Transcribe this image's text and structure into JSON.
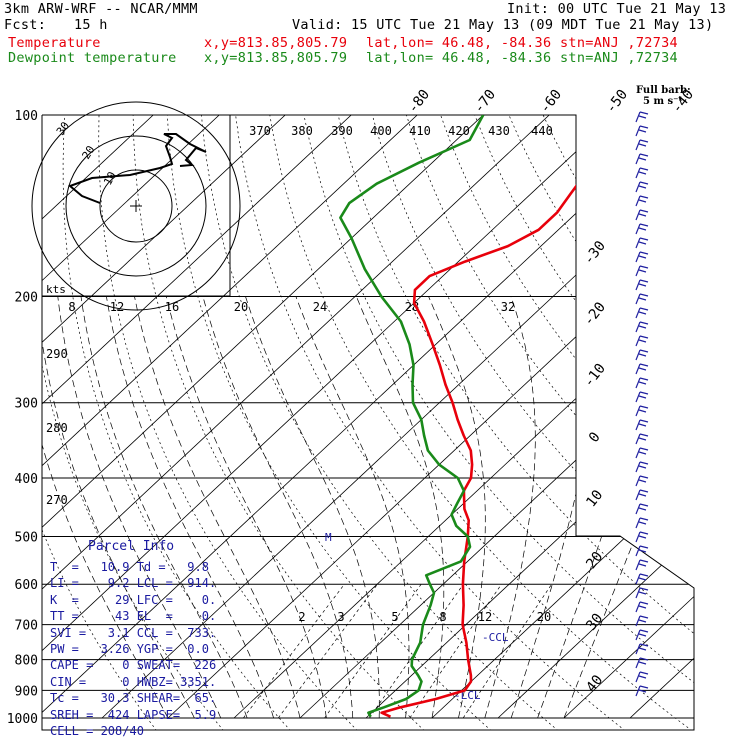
{
  "header": {
    "model": "3km ARW-WRF -- NCAR/MMM",
    "init": "Init: 00 UTC Tue 21 May 13",
    "fcst_label": "Fcst:",
    "fcst_value": "15 h",
    "valid": "Valid: 15 UTC Tue 21 May 13 (09 MDT Tue 21 May 13)",
    "temp_label": "Temperature",
    "dew_label": "Dewpoint temperature",
    "xy": "x,y=813.85,805.79",
    "latlon": "lat,lon= 46.48, -84.36",
    "stn": "stn=ANJ ,72734",
    "full_barb_1": "Full barb:",
    "full_barb_2": "5 m s⁻¹"
  },
  "hodograph": {
    "kts_label": "kts",
    "ring_labels": [
      "10",
      "20",
      "30"
    ]
  },
  "parcel": {
    "title": "Parcel Info",
    "rows": [
      "T  =   10.9 Td =   9.8",
      "LI =    9.2 LCL =  914.",
      "K  =     29 LFC =    0.",
      "TT =     43 EL  =    0.",
      "SVI =   3.1 CCL =  733.",
      "PW =   3.26 YGP =  0.0",
      "CAPE =    0 SWEAT=  226",
      "CIN =     0 HWBZ= 3351.",
      "Tc =   30.3 SHEAR=  65.",
      "SREH =  424 LAPSE=  5.9",
      "CELL = 208/40"
    ]
  },
  "colors": {
    "temperature": "#e8000b",
    "dewpoint": "#1a8a1a",
    "axes": "#000000",
    "dashed": "#000000",
    "parcel_text": "#1a1aa0",
    "barbs": "#2020a0"
  },
  "chart_data": {
    "type": "line",
    "title": "",
    "xlabel": "",
    "ylabel": "",
    "y_scale": "log-pressure",
    "pressure_ticks": [
      100,
      200,
      300,
      400,
      500,
      600,
      700,
      800,
      900,
      1000
    ],
    "isotherm_labels": [
      "-80",
      "-70",
      "-60",
      "-50",
      "-40",
      "-30",
      "-20",
      "-10",
      "0",
      "10",
      "20",
      "30",
      "40"
    ],
    "theta_labels_top": [
      "370",
      "380",
      "390",
      "400",
      "410",
      "420",
      "430",
      "440"
    ],
    "theta_labels_left": [
      "290",
      "280",
      "270"
    ],
    "mixing_ratio_labels_top": [
      "8",
      "12",
      "16",
      "20",
      "24",
      "28",
      "32"
    ],
    "mixing_ratio_labels_low": [
      "2",
      "3",
      "5",
      "8",
      "12",
      "20"
    ],
    "annotations": [
      "CCL",
      "LCL",
      "M"
    ],
    "series": [
      {
        "name": "Temperature",
        "points": [
          [
            995,
            13.5
          ],
          [
            980,
            11.5
          ],
          [
            960,
            13.5
          ],
          [
            930,
            17.5
          ],
          [
            900,
            20.5
          ],
          [
            870,
            20
          ],
          [
            850,
            19
          ],
          [
            800,
            16
          ],
          [
            750,
            13
          ],
          [
            700,
            9.5
          ],
          [
            650,
            6.5
          ],
          [
            600,
            3
          ],
          [
            550,
            -0.5
          ],
          [
            500,
            -4
          ],
          [
            470,
            -6.5
          ],
          [
            450,
            -9
          ],
          [
            420,
            -12
          ],
          [
            400,
            -13
          ],
          [
            380,
            -15
          ],
          [
            360,
            -17.5
          ],
          [
            340,
            -21
          ],
          [
            320,
            -24.5
          ],
          [
            300,
            -28
          ],
          [
            280,
            -32
          ],
          [
            260,
            -36
          ],
          [
            240,
            -40.5
          ],
          [
            220,
            -45.5
          ],
          [
            205,
            -50
          ],
          [
            195,
            -52
          ],
          [
            185,
            -52
          ],
          [
            175,
            -49
          ],
          [
            165,
            -45
          ],
          [
            155,
            -43
          ],
          [
            145,
            -43
          ],
          [
            135,
            -44
          ],
          [
            125,
            -45
          ],
          [
            115,
            -46
          ],
          [
            105,
            -45
          ],
          [
            100,
            -45
          ]
        ]
      },
      {
        "name": "Dewpoint temperature",
        "points": [
          [
            995,
            10.5
          ],
          [
            980,
            9.5
          ],
          [
            960,
            11
          ],
          [
            930,
            13
          ],
          [
            900,
            13.5
          ],
          [
            870,
            12.5
          ],
          [
            850,
            11
          ],
          [
            820,
            8.5
          ],
          [
            800,
            7.5
          ],
          [
            750,
            6
          ],
          [
            700,
            3.5
          ],
          [
            650,
            1.5
          ],
          [
            620,
            0
          ],
          [
            600,
            -2
          ],
          [
            580,
            -4
          ],
          [
            550,
            -1
          ],
          [
            520,
            -2
          ],
          [
            500,
            -4
          ],
          [
            480,
            -7.5
          ],
          [
            460,
            -10
          ],
          [
            440,
            -11
          ],
          [
            420,
            -12
          ],
          [
            400,
            -15
          ],
          [
            380,
            -20
          ],
          [
            360,
            -24
          ],
          [
            340,
            -27
          ],
          [
            320,
            -30
          ],
          [
            300,
            -34
          ],
          [
            280,
            -37
          ],
          [
            260,
            -40
          ],
          [
            240,
            -44
          ],
          [
            220,
            -49
          ],
          [
            200,
            -56
          ],
          [
            180,
            -63
          ],
          [
            160,
            -70
          ],
          [
            148,
            -75
          ],
          [
            140,
            -76
          ],
          [
            130,
            -75
          ],
          [
            120,
            -72
          ],
          [
            110,
            -68
          ],
          [
            100,
            -70
          ]
        ]
      }
    ]
  }
}
